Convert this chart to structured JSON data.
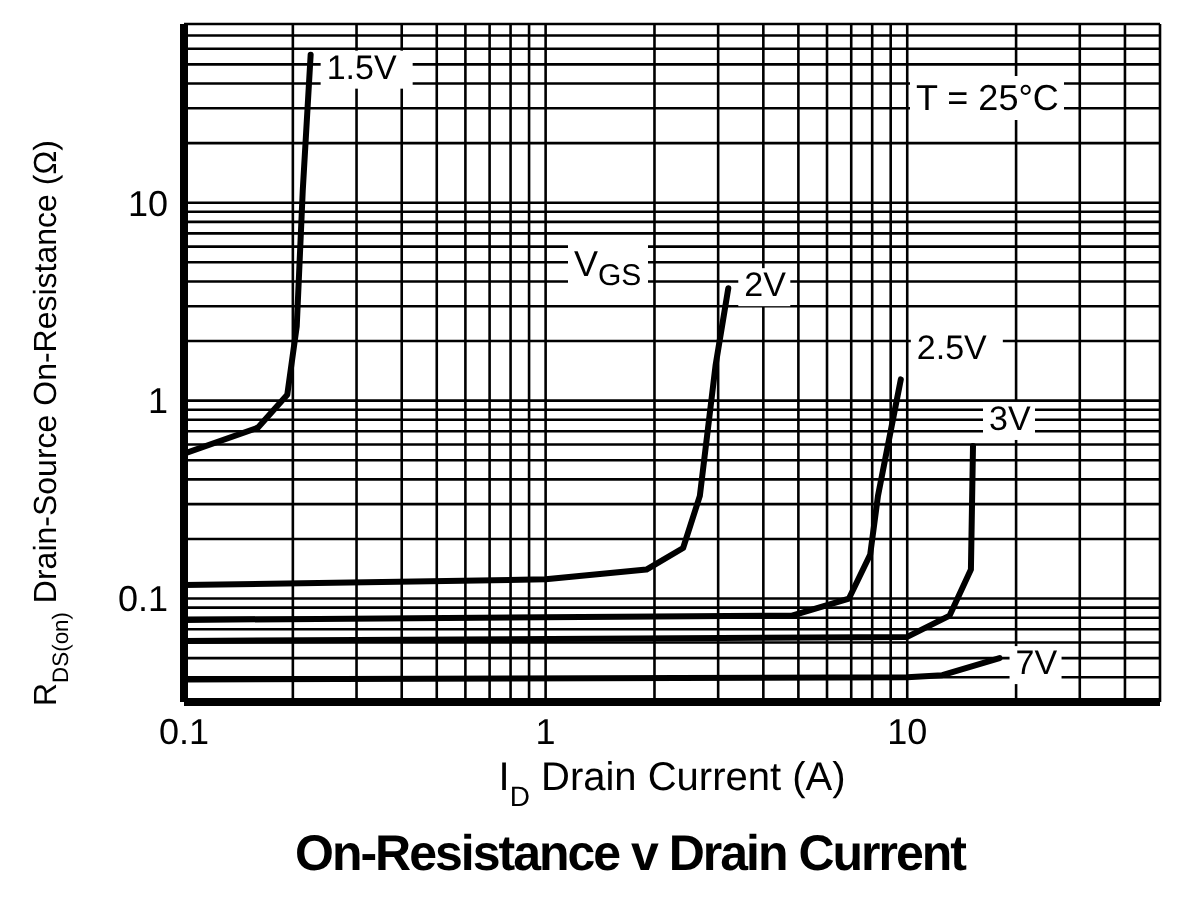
{
  "chart_data": {
    "type": "line",
    "title": "On-Resistance v Drain Current",
    "xlabel": "I$_{D}$ Drain Current (A)",
    "ylabel": "R$_{DS(on)}$ Drain-Source On-Resistance (Ω)",
    "annotations": [
      "V$_{GS}$",
      "T = 25°C"
    ],
    "log": "xy",
    "grid": true,
    "marker": "none",
    "line_style": "solid",
    "xlim": [
      0.1,
      50
    ],
    "ylim": [
      0.03,
      80
    ],
    "xticks": [
      0.1,
      {
        "value": 0.2,
        "label": null
      },
      {
        "value": 0.3,
        "label": null
      },
      {
        "value": 0.4,
        "label": null
      },
      {
        "value": 0.5,
        "label": null
      },
      {
        "value": 0.6,
        "label": null
      },
      {
        "value": 0.7,
        "label": null
      },
      {
        "value": 0.8,
        "label": null
      },
      {
        "value": 0.9,
        "label": null
      },
      1,
      {
        "value": 2,
        "label": null
      },
      {
        "value": 3,
        "label": null
      },
      {
        "value": 4,
        "label": null
      },
      {
        "value": 5,
        "label": null
      },
      {
        "value": 6,
        "label": null
      },
      {
        "value": 7,
        "label": null
      },
      {
        "value": 8,
        "label": null
      },
      {
        "value": 9,
        "label": null
      },
      10,
      {
        "value": 20,
        "label": null
      },
      {
        "value": 30,
        "label": null
      },
      {
        "value": 40,
        "label": null
      }
    ],
    "yticks": [
      {
        "value": 0.04,
        "label": null
      },
      {
        "value": 0.05,
        "label": null
      },
      {
        "value": 0.06,
        "label": null
      },
      {
        "value": 0.07,
        "label": null
      },
      {
        "value": 0.08,
        "label": null
      },
      {
        "value": 0.09,
        "label": null
      },
      0.1,
      {
        "value": 0.2,
        "label": null
      },
      {
        "value": 0.3,
        "label": null
      },
      {
        "value": 0.4,
        "label": null
      },
      {
        "value": 0.5,
        "label": null
      },
      {
        "value": 0.6,
        "label": null
      },
      {
        "value": 0.7,
        "label": null
      },
      {
        "value": 0.8,
        "label": null
      },
      {
        "value": 0.9,
        "label": null
      },
      1,
      {
        "value": 2,
        "label": null
      },
      {
        "value": 3,
        "label": null
      },
      {
        "value": 4,
        "label": null
      },
      {
        "value": 5,
        "label": null
      },
      {
        "value": 6,
        "label": null
      },
      {
        "value": 7,
        "label": null
      },
      {
        "value": 8,
        "label": null
      },
      {
        "value": 9,
        "label": null
      },
      10,
      {
        "value": 20,
        "label": null
      },
      {
        "value": 30,
        "label": null
      },
      {
        "value": 40,
        "label": null
      },
      {
        "value": 50,
        "label": null
      },
      {
        "value": 60,
        "label": null
      },
      {
        "value": 70,
        "label": null
      }
    ],
    "series": [
      {
        "name": "1.5V",
        "color": "#000000",
        "x": [
          0.1,
          0.16,
          0.193,
          0.205,
          0.213,
          0.224
        ],
        "values": [
          0.54,
          0.73,
          1.07,
          2.37,
          11.5,
          56
        ]
      },
      {
        "name": "2V",
        "color": "#000000",
        "x": [
          0.1,
          1,
          1.9,
          2.4,
          2.67,
          2.95,
          3.2
        ],
        "values": [
          0.117,
          0.125,
          0.14,
          0.18,
          0.33,
          1.5,
          3.7
        ]
      },
      {
        "name": "2.5V",
        "color": "#000000",
        "x": [
          0.1,
          4.8,
          6.9,
          7.9,
          8.3,
          9.6
        ],
        "values": [
          0.078,
          0.082,
          0.1,
          0.167,
          0.33,
          1.28
        ]
      },
      {
        "name": "3V",
        "color": "#000000",
        "x": [
          0.1,
          10,
          13.1,
          15,
          15.2
        ],
        "values": [
          0.061,
          0.064,
          0.082,
          0.14,
          0.59
        ]
      },
      {
        "name": "7V",
        "color": "#000000",
        "x": [
          0.1,
          10,
          12.5,
          18
        ],
        "values": [
          0.039,
          0.04,
          0.041,
          0.05
        ]
      }
    ]
  }
}
